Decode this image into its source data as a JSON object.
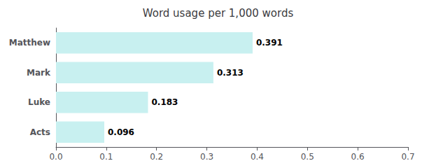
{
  "chart_data": {
    "type": "bar",
    "orientation": "horizontal",
    "title": "Word usage per 1,000 words",
    "categories": [
      "Matthew",
      "Mark",
      "Luke",
      "Acts"
    ],
    "values": [
      0.391,
      0.313,
      0.183,
      0.096
    ],
    "color": "#c8f0f0",
    "xlim": [
      0.0,
      0.7
    ],
    "xticks": [
      {
        "value": 0,
        "label": "0.0"
      },
      0.1,
      0.2,
      0.3,
      0.4,
      0.5,
      0.6,
      0.7
    ],
    "data_labels": true,
    "grid": false
  }
}
